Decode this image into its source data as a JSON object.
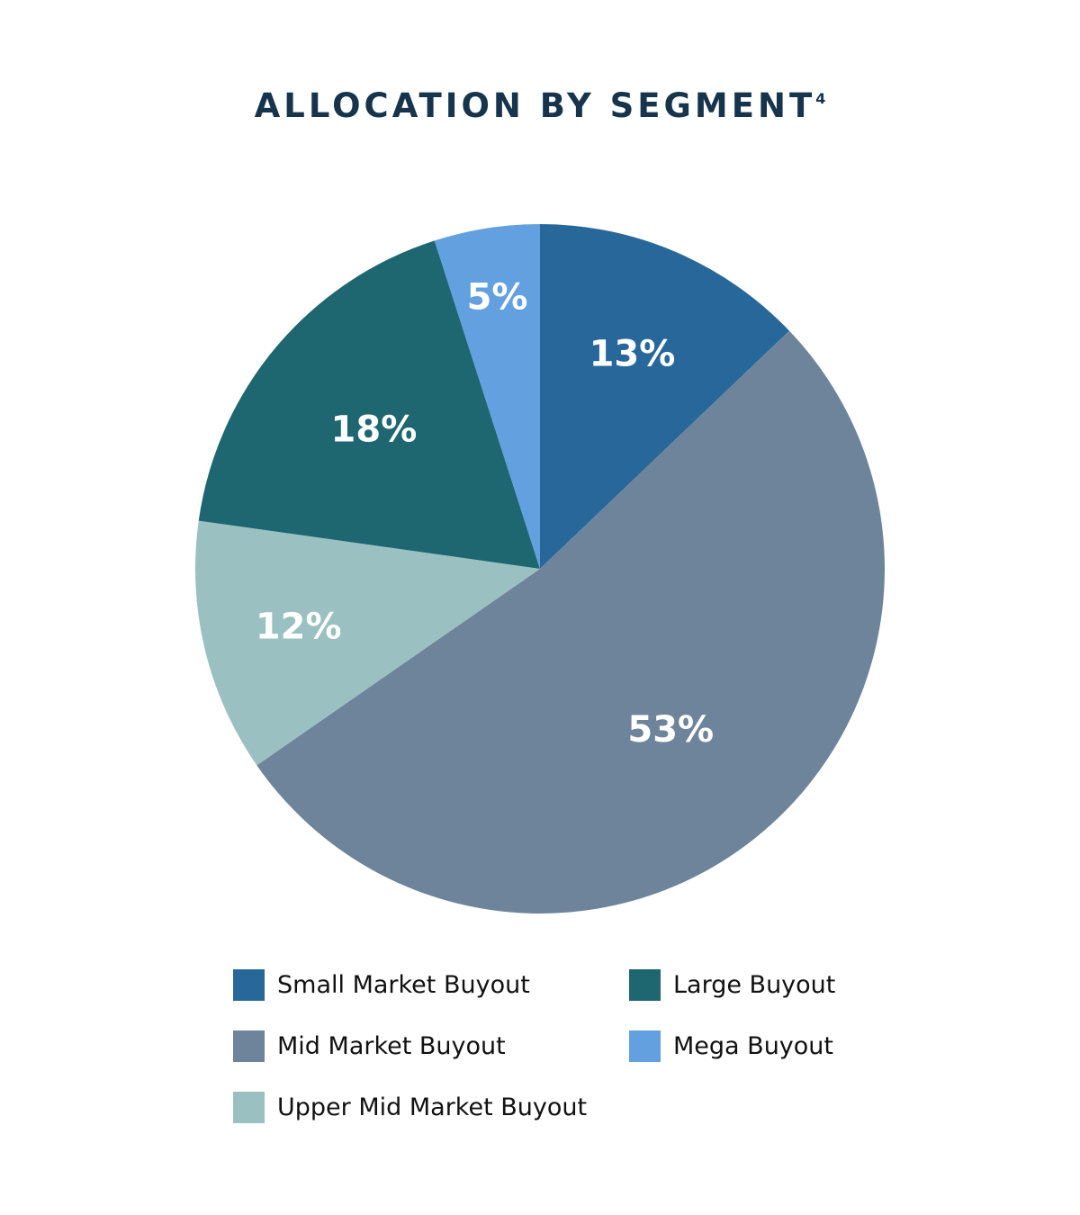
{
  "chart_data": {
    "type": "pie",
    "title": "ALLOCATION BY SEGMENT",
    "title_superscript": "4",
    "start": "12 o'clock, clockwise",
    "legend_placement": "bottom",
    "slices": [
      {
        "name": "Small Market Buyout",
        "value": 13,
        "label": "13%",
        "color": "#28679a"
      },
      {
        "name": "Mid Market Buyout",
        "value": 53,
        "label": "53%",
        "color": "#6e849b"
      },
      {
        "name": "Upper Mid Market Buyout",
        "value": 12,
        "label": "12%",
        "color": "#9bc0c1"
      },
      {
        "name": "Large Buyout",
        "value": 18,
        "label": "18%",
        "color": "#1e6670"
      },
      {
        "name": "Mega Buyout",
        "value": 5,
        "label": "5%",
        "color": "#62a0df"
      }
    ]
  }
}
